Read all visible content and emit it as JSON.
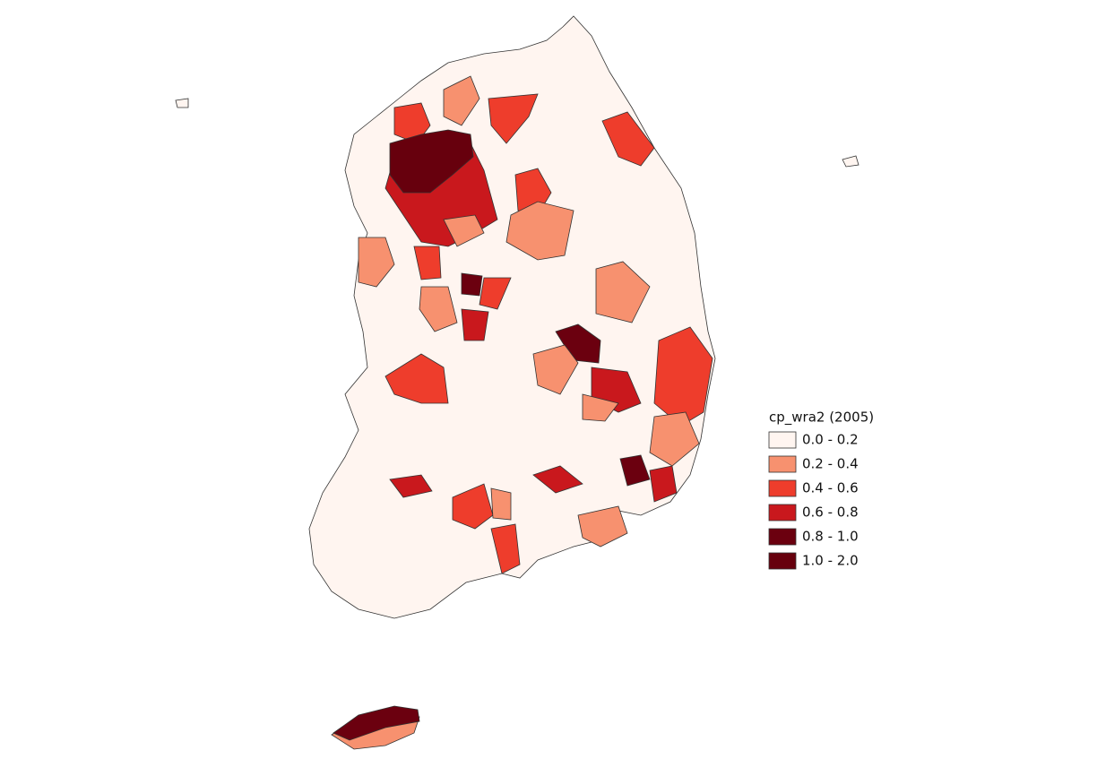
{
  "legend": {
    "title": "cp_wra2 (2005)",
    "items": [
      {
        "label": "0.0 - 0.2",
        "color": "#fff5f0"
      },
      {
        "label": "0.2 - 0.4",
        "color": "#f7916f"
      },
      {
        "label": "0.4 - 0.6",
        "color": "#ee3d2c"
      },
      {
        "label": "0.6 - 0.8",
        "color": "#c9181d"
      },
      {
        "label": "0.8 - 1.0",
        "color": "#6b000f"
      },
      {
        "label": "1.0 - 2.0",
        "color": "#67000d"
      }
    ]
  }
}
